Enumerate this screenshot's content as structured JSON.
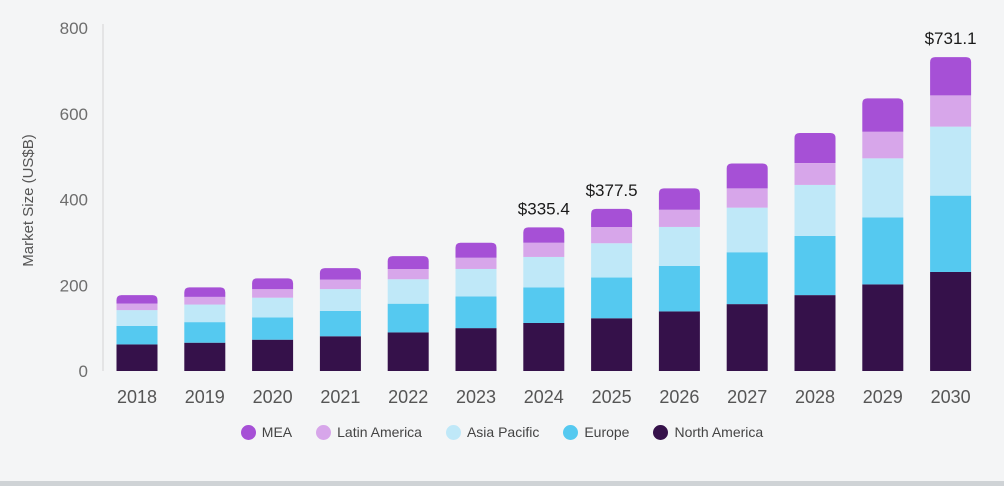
{
  "chart_data": {
    "type": "bar",
    "stacked": true,
    "title": "",
    "xlabel": "",
    "ylabel": "Market Size (US$B)",
    "ylim": [
      0,
      800
    ],
    "yticks": [
      0,
      200,
      400,
      600,
      800
    ],
    "categories": [
      "2018",
      "2019",
      "2020",
      "2021",
      "2022",
      "2023",
      "2024",
      "2025",
      "2026",
      "2027",
      "2028",
      "2029",
      "2030"
    ],
    "series": [
      {
        "name": "North America",
        "color": "#35114a",
        "values": [
          62,
          66,
          73,
          81,
          90,
          100,
          112,
          123,
          139,
          156,
          177,
          202,
          231
        ]
      },
      {
        "name": "Europe",
        "color": "#55c9f0",
        "values": [
          43,
          48,
          52,
          59,
          67,
          74,
          83,
          95,
          106,
          121,
          138,
          156,
          178
        ]
      },
      {
        "name": "Asia Pacific",
        "color": "#bfe8f8",
        "values": [
          37,
          41,
          46,
          51,
          57,
          64,
          71,
          80,
          91,
          104,
          119,
          138,
          161
        ]
      },
      {
        "name": "Latin America",
        "color": "#d7a6ea",
        "values": [
          15,
          18,
          20,
          22,
          24,
          26,
          33,
          38,
          40,
          45,
          51,
          62,
          73
        ]
      },
      {
        "name": "MEA",
        "color": "#a650d6",
        "values": [
          20,
          22,
          25,
          27,
          30,
          35,
          36,
          42,
          50,
          58,
          70,
          78,
          89
        ]
      }
    ],
    "data_labels": [
      {
        "category": "2024",
        "text": "$335.4"
      },
      {
        "category": "2025",
        "text": "$377.5"
      },
      {
        "category": "2030",
        "text": "$731.1"
      }
    ]
  },
  "legend": {
    "items": [
      {
        "label": "MEA",
        "color": "#a650d6"
      },
      {
        "label": "Latin America",
        "color": "#d7a6ea"
      },
      {
        "label": "Asia Pacific",
        "color": "#bfe8f8"
      },
      {
        "label": "Europe",
        "color": "#55c9f0"
      },
      {
        "label": "North America",
        "color": "#35114a"
      }
    ]
  }
}
